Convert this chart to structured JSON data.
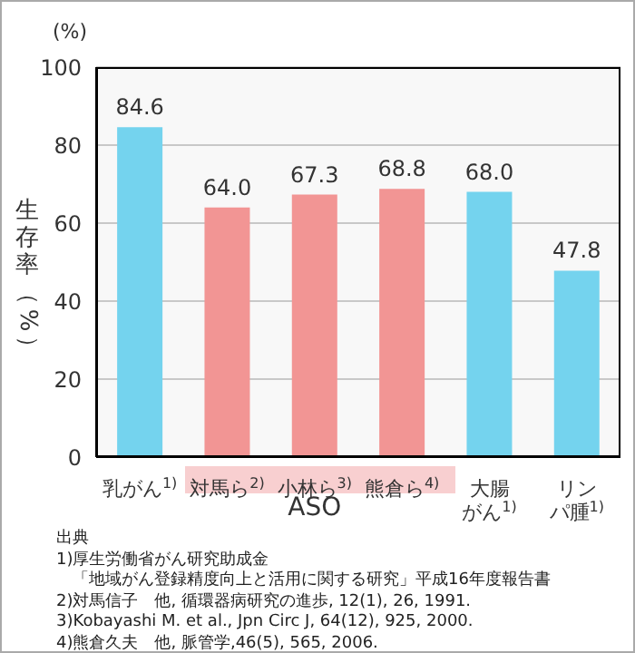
{
  "chart_data": {
    "type": "bar",
    "ylabel": "生存率（%）",
    "categories": [
      "乳がん$^{1)}$",
      "対馬ら$^{2)}$",
      "小林ら$^{3)}$",
      "熊倉ら$^{4)}$",
      "大腸がん$^{1)}$",
      "リンパ腫$^{1)}$"
    ],
    "values": [
      84.6,
      64.0,
      67.3,
      68.8,
      68.0,
      47.8
    ],
    "value_labels": [
      "84.6",
      "64.0",
      "67.3",
      "68.8",
      "68.0",
      "47.8"
    ],
    "colors": [
      "#74d3ee",
      "#f29594",
      "#f29594",
      "#f29594",
      "#74d3ee",
      "#74d3ee"
    ],
    "ylim": [
      0,
      100
    ],
    "yticks": [
      0,
      20,
      40,
      60,
      80,
      100
    ],
    "grid": "y",
    "annotations": [
      "(%)",
      "ASO",
      "出典",
      "1)厚生労働省がん研究助成金",
      "　「地域がん登録精度向上と活用に関する研究」平成16年度報告書",
      "2)対馬信子　他, 循環器病研究の進歩, 12(1), 26, 1991.",
      "3)Kobayashi M. et al., Jpn Circ J, 64(12), 925, 2000.",
      "4)熊倉久夫　他, 脈管学,46(5), 565, 2006."
    ]
  }
}
